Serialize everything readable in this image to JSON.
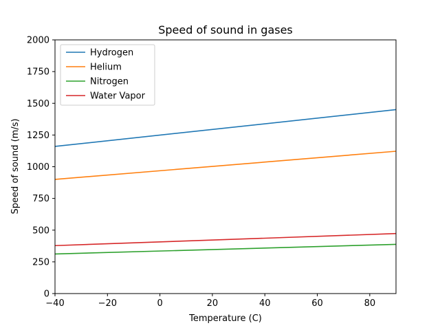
{
  "chart_data": {
    "type": "line",
    "title": "Speed of sound in gases",
    "xlabel": "Temperature (C)",
    "ylabel": "Speed of sound (m/s)",
    "xlim": [
      -40,
      90
    ],
    "ylim": [
      0,
      2000
    ],
    "xticks": [
      -40,
      -20,
      0,
      20,
      40,
      60,
      80
    ],
    "xtick_labels": [
      "−40",
      "−20",
      "0",
      "20",
      "40",
      "60",
      "80"
    ],
    "yticks": [
      0,
      250,
      500,
      750,
      1000,
      1250,
      1500,
      1750,
      2000
    ],
    "ytick_labels": [
      "0",
      "250",
      "500",
      "750",
      "1000",
      "1250",
      "1500",
      "1750",
      "2000"
    ],
    "grid": false,
    "legend_position": "upper-left",
    "series": [
      {
        "name": "Hydrogen",
        "color": "#1f77b4",
        "x": [
          -40,
          90
        ],
        "y": [
          1160,
          1450
        ]
      },
      {
        "name": "Helium",
        "color": "#ff7f0e",
        "x": [
          -40,
          90
        ],
        "y": [
          900,
          1122
        ]
      },
      {
        "name": "Nitrogen",
        "color": "#2ca02c",
        "x": [
          -40,
          90
        ],
        "y": [
          312,
          388
        ]
      },
      {
        "name": "Water Vapor",
        "color": "#d62728",
        "x": [
          -40,
          90
        ],
        "y": [
          378,
          473
        ]
      }
    ]
  }
}
